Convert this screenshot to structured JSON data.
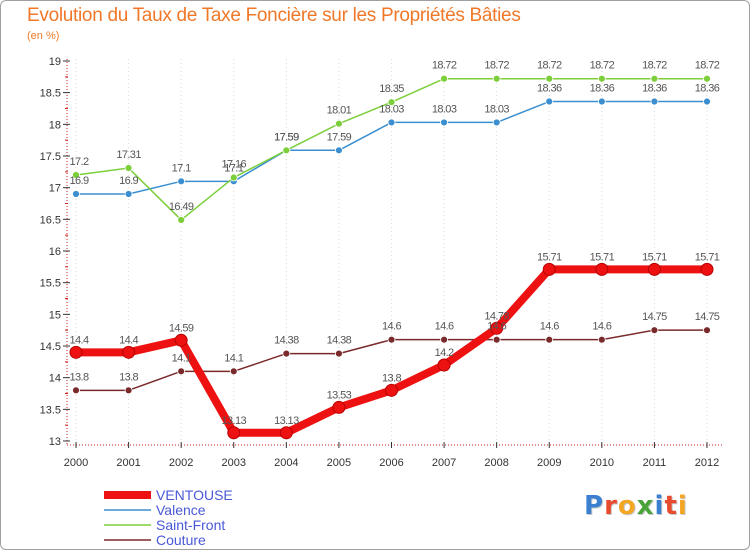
{
  "chart_data": {
    "type": "line",
    "title": "Evolution du Taux de Taxe Foncière sur les Propriétés Bâties",
    "ylabel": "(en %)",
    "xlabel": "",
    "x": [
      "2000",
      "2001",
      "2002",
      "2003",
      "2004",
      "2005",
      "2006",
      "2007",
      "2008",
      "2009",
      "2010",
      "2011",
      "2012"
    ],
    "ylim": [
      13,
      19
    ],
    "yticks": [
      "13",
      "13.5",
      "14",
      "14.5",
      "15",
      "15.5",
      "16",
      "16.5",
      "17",
      "17.5",
      "18",
      "18.5",
      "19"
    ],
    "grid": "vertical",
    "legend_position": "bottom-left",
    "series": [
      {
        "name": "VENTOUSE",
        "color": "#ee1111",
        "values": [
          14.4,
          14.4,
          14.59,
          13.13,
          13.13,
          13.53,
          13.8,
          14.2,
          14.78,
          15.71,
          15.71,
          15.71,
          15.71
        ],
        "labels": [
          "14.4",
          "14.4",
          "14.59",
          "13.13",
          "13.13",
          "13.53",
          "13.8",
          "14.2",
          "14.78",
          "15.71",
          "15.71",
          "15.71",
          "15.71"
        ]
      },
      {
        "name": "Valence",
        "color": "#3b8fd0",
        "values": [
          16.9,
          16.9,
          17.1,
          17.1,
          17.59,
          17.59,
          18.03,
          18.03,
          18.03,
          18.36,
          18.36,
          18.36,
          18.36
        ],
        "labels": [
          "16.9",
          "16.9",
          "17.1",
          "17.1",
          "17.59",
          "17.59",
          "18.03",
          "18.03",
          "18.03",
          "18.36",
          "18.36",
          "18.36",
          "18.36"
        ]
      },
      {
        "name": "Saint-Front",
        "color": "#7ccf3a",
        "values": [
          17.2,
          17.31,
          16.49,
          17.16,
          17.59,
          18.01,
          18.35,
          18.72,
          18.72,
          18.72,
          18.72,
          18.72,
          18.72
        ],
        "labels": [
          "17.2",
          "17.31",
          "16.49",
          "17.16",
          "17.59",
          "18.01",
          "18.35",
          "18.72",
          "18.72",
          "18.72",
          "18.72",
          "18.72",
          "18.72"
        ]
      },
      {
        "name": "Couture",
        "color": "#7a2a2a",
        "values": [
          13.8,
          13.8,
          14.1,
          14.1,
          14.38,
          14.38,
          14.6,
          14.6,
          14.6,
          14.6,
          14.6,
          14.75,
          14.75
        ],
        "labels": [
          "13.8",
          "13.8",
          "14.1",
          "14.1",
          "14.38",
          "14.38",
          "14.6",
          "14.6",
          "14.6",
          "14.6",
          "14.6",
          "14.75",
          "14.75"
        ]
      }
    ]
  },
  "legend": {
    "items": [
      "VENTOUSE",
      "Valence",
      "Saint-Front",
      "Couture"
    ]
  },
  "logo": {
    "letters": [
      "P",
      "r",
      "o",
      "x",
      "i",
      "t",
      "i"
    ],
    "colors": [
      "#3a7fd0",
      "#e84a2e",
      "#f3a623",
      "#4aa33a",
      "#3a7fd0",
      "#e84a2e",
      "#f3a623"
    ]
  }
}
